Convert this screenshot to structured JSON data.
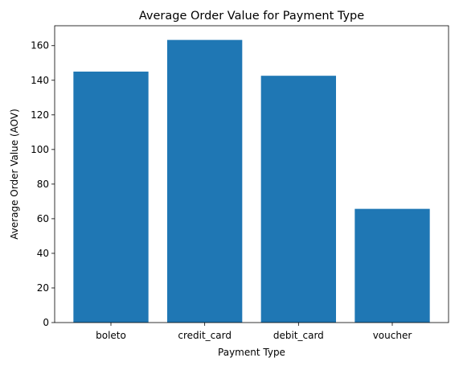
{
  "chart_data": {
    "type": "bar",
    "title": "Average Order Value for Payment Type",
    "xlabel": "Payment Type",
    "ylabel": "Average Order Value (AOV)",
    "categories": [
      "boleto",
      "credit_card",
      "debit_card",
      "voucher"
    ],
    "values": [
      145.0,
      163.3,
      142.6,
      65.7
    ],
    "ylim": [
      0,
      171.5
    ],
    "yticks": [
      0,
      20,
      40,
      60,
      80,
      100,
      120,
      140,
      160
    ],
    "bar_color": "#1f77b4",
    "grid": false,
    "legend": "none"
  }
}
